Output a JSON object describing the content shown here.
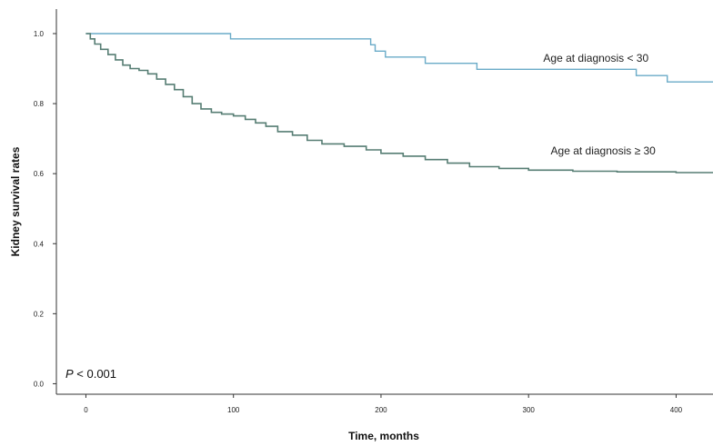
{
  "chart_data": {
    "type": "line",
    "title": "",
    "xlabel": "Time, months",
    "ylabel": "Kidney survival rates",
    "xlim": [
      -20,
      425
    ],
    "ylim": [
      -0.03,
      1.07
    ],
    "xticks": [
      0,
      100,
      200,
      300,
      400
    ],
    "yticks": [
      0.0,
      0.2,
      0.4,
      0.6,
      0.8,
      1.0
    ],
    "xtick_labels": [
      "0",
      "100",
      "200",
      "300",
      "400"
    ],
    "ytick_labels": [
      "0.0",
      "0.2",
      "0.4",
      "0.6",
      "0.8",
      "1.0"
    ],
    "grid": false,
    "annotation": {
      "prefix": "P",
      "text": " < 0.001"
    },
    "series": [
      {
        "label": "Age at diagnosis < 30",
        "color": "#6aabc8",
        "step": true,
        "x": [
          0,
          98,
          193,
          196,
          203,
          230,
          265,
          373,
          394,
          425
        ],
        "y": [
          1.0,
          0.985,
          0.968,
          0.95,
          0.933,
          0.915,
          0.898,
          0.88,
          0.862,
          0.862
        ]
      },
      {
        "label": "Age at diagnosis ≥ 30",
        "color": "#567d73",
        "step": true,
        "x": [
          0,
          3,
          6,
          10,
          15,
          20,
          25,
          30,
          36,
          42,
          48,
          54,
          60,
          66,
          72,
          78,
          85,
          92,
          100,
          108,
          115,
          122,
          130,
          140,
          150,
          160,
          175,
          190,
          200,
          215,
          230,
          245,
          260,
          280,
          300,
          330,
          360,
          400,
          425
        ],
        "y": [
          1.0,
          0.985,
          0.97,
          0.955,
          0.94,
          0.925,
          0.91,
          0.9,
          0.895,
          0.885,
          0.87,
          0.855,
          0.84,
          0.82,
          0.8,
          0.785,
          0.775,
          0.77,
          0.765,
          0.755,
          0.745,
          0.735,
          0.72,
          0.71,
          0.695,
          0.685,
          0.678,
          0.668,
          0.658,
          0.65,
          0.64,
          0.63,
          0.62,
          0.615,
          0.61,
          0.607,
          0.605,
          0.603,
          0.603
        ]
      }
    ]
  }
}
